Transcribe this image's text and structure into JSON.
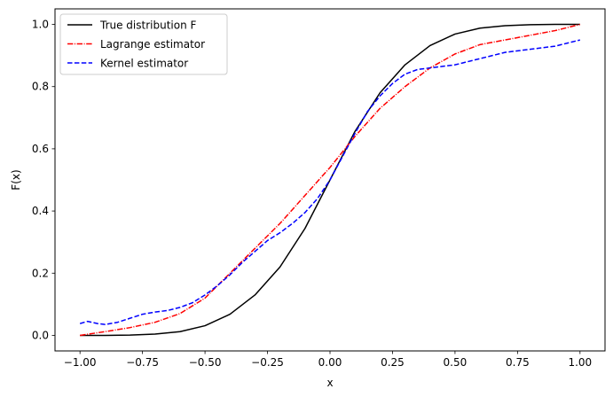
{
  "chart_data": {
    "type": "line",
    "title": "",
    "xlabel": "x",
    "ylabel": "F(x)",
    "xlim": [
      -1.1,
      1.1
    ],
    "ylim": [
      -0.05,
      1.05
    ],
    "xticks": [
      -1.0,
      -0.75,
      -0.5,
      -0.25,
      0.0,
      0.25,
      0.5,
      0.75,
      1.0
    ],
    "xtick_labels": [
      "−1.00",
      "−0.75",
      "−0.50",
      "−0.25",
      "0.00",
      "0.25",
      "0.50",
      "0.75",
      "1.00"
    ],
    "yticks": [
      0.0,
      0.2,
      0.4,
      0.6,
      0.8,
      1.0
    ],
    "ytick_labels": [
      "0.0",
      "0.2",
      "0.4",
      "0.6",
      "0.8",
      "1.0"
    ],
    "grid": false,
    "legend_position": "top-left",
    "series": [
      {
        "name": "True distribution F",
        "color": "#000000",
        "dash": "solid",
        "x": [
          -1.0,
          -0.9,
          -0.8,
          -0.7,
          -0.6,
          -0.5,
          -0.4,
          -0.3,
          -0.2,
          -0.1,
          0.0,
          0.1,
          0.2,
          0.3,
          0.4,
          0.5,
          0.6,
          0.7,
          0.8,
          0.9,
          1.0
        ],
        "y": [
          0.0,
          0.0,
          0.001,
          0.004,
          0.012,
          0.031,
          0.068,
          0.13,
          0.22,
          0.344,
          0.5,
          0.656,
          0.78,
          0.87,
          0.932,
          0.969,
          0.988,
          0.996,
          0.999,
          1.0,
          1.0
        ]
      },
      {
        "name": "Lagrange estimator",
        "color": "#ff0000",
        "dash": "dashdot",
        "x": [
          -1.0,
          -0.9,
          -0.8,
          -0.7,
          -0.6,
          -0.5,
          -0.4,
          -0.3,
          -0.2,
          -0.1,
          0.0,
          0.1,
          0.2,
          0.3,
          0.4,
          0.5,
          0.6,
          0.7,
          0.8,
          0.9,
          1.0
        ],
        "y": [
          0.0,
          0.012,
          0.025,
          0.042,
          0.07,
          0.12,
          0.2,
          0.28,
          0.36,
          0.45,
          0.54,
          0.64,
          0.73,
          0.8,
          0.86,
          0.905,
          0.935,
          0.95,
          0.965,
          0.98,
          1.0
        ]
      },
      {
        "name": "Kernel estimator",
        "color": "#0000ff",
        "dash": "dashed",
        "x": [
          -1.0,
          -0.97,
          -0.93,
          -0.9,
          -0.85,
          -0.8,
          -0.75,
          -0.7,
          -0.65,
          -0.6,
          -0.55,
          -0.5,
          -0.45,
          -0.4,
          -0.35,
          -0.3,
          -0.25,
          -0.2,
          -0.15,
          -0.1,
          -0.05,
          0.0,
          0.05,
          0.1,
          0.15,
          0.2,
          0.25,
          0.3,
          0.35,
          0.4,
          0.45,
          0.5,
          0.55,
          0.6,
          0.65,
          0.7,
          0.75,
          0.8,
          0.85,
          0.9,
          0.95,
          1.0
        ],
        "y": [
          0.038,
          0.045,
          0.038,
          0.035,
          0.042,
          0.055,
          0.068,
          0.075,
          0.08,
          0.09,
          0.105,
          0.13,
          0.16,
          0.195,
          0.235,
          0.27,
          0.305,
          0.33,
          0.36,
          0.395,
          0.44,
          0.5,
          0.575,
          0.65,
          0.72,
          0.77,
          0.81,
          0.84,
          0.855,
          0.86,
          0.865,
          0.87,
          0.88,
          0.89,
          0.9,
          0.91,
          0.915,
          0.92,
          0.925,
          0.93,
          0.94,
          0.95
        ]
      }
    ]
  }
}
